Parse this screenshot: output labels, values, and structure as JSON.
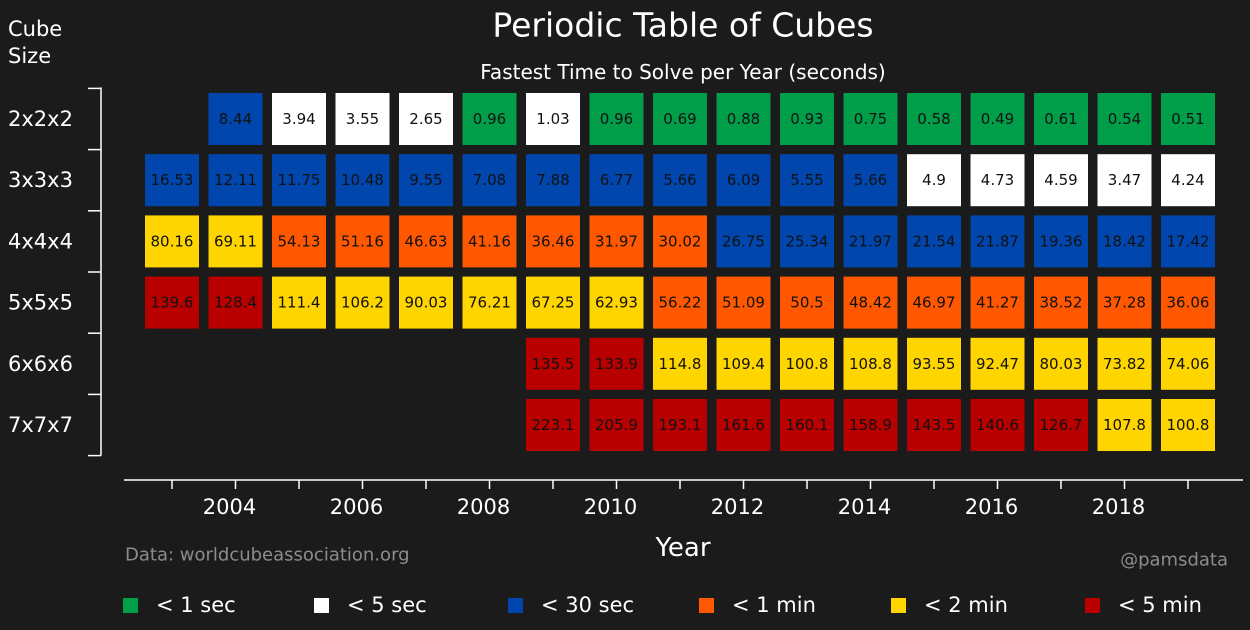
{
  "chart_data": {
    "type": "heatmap",
    "title": "Periodic Table of Cubes",
    "subtitle": "Fastest Time to Solve per Year (seconds)",
    "ylabel": "Cube\nSize",
    "xlabel": "Year",
    "x_ticks": [
      2004,
      2006,
      2008,
      2010,
      2012,
      2014,
      2016,
      2018
    ],
    "years": [
      2003,
      2004,
      2005,
      2006,
      2007,
      2008,
      2009,
      2010,
      2011,
      2012,
      2013,
      2014,
      2015,
      2016,
      2017,
      2018,
      2019
    ],
    "rows": [
      {
        "name": "2x2x2",
        "values": [
          null,
          "8.44",
          "3.94",
          "3.55",
          "2.65",
          "0.96",
          "1.03",
          "0.96",
          "0.69",
          "0.88",
          "0.93",
          "0.75",
          "0.58",
          "0.49",
          "0.61",
          "0.54",
          "0.51"
        ]
      },
      {
        "name": "3x3x3",
        "values": [
          "16.53",
          "12.11",
          "11.75",
          "10.48",
          "9.55",
          "7.08",
          "7.88",
          "6.77",
          "5.66",
          "6.09",
          "5.55",
          "5.66",
          "4.9",
          "4.73",
          "4.59",
          "3.47",
          "4.24"
        ]
      },
      {
        "name": "4x4x4",
        "values": [
          "80.16",
          "69.11",
          "54.13",
          "51.16",
          "46.63",
          "41.16",
          "36.46",
          "31.97",
          "30.02",
          "26.75",
          "25.34",
          "21.97",
          "21.54",
          "21.87",
          "19.36",
          "18.42",
          "17.42"
        ]
      },
      {
        "name": "5x5x5",
        "values": [
          "139.6",
          "128.4",
          "111.4",
          "106.2",
          "90.03",
          "76.21",
          "67.25",
          "62.93",
          "56.22",
          "51.09",
          "50.5",
          "48.42",
          "46.97",
          "41.27",
          "38.52",
          "37.28",
          "36.06"
        ]
      },
      {
        "name": "6x6x6",
        "values": [
          null,
          null,
          null,
          null,
          null,
          null,
          "135.5",
          "133.9",
          "114.8",
          "109.4",
          "100.8",
          "108.8",
          "93.55",
          "92.47",
          "80.03",
          "73.82",
          "74.06"
        ]
      },
      {
        "name": "7x7x7",
        "values": [
          null,
          null,
          null,
          null,
          null,
          null,
          "223.1",
          "205.9",
          "193.1",
          "161.6",
          "160.1",
          "158.9",
          "143.5",
          "140.6",
          "126.7",
          "107.8",
          "100.8"
        ]
      }
    ],
    "legend": [
      {
        "label": "< 1 sec",
        "max": 1,
        "color": "#009e49"
      },
      {
        "label": "< 5 sec",
        "max": 5,
        "color": "#ffffff"
      },
      {
        "label": "< 30 sec",
        "max": 30,
        "color": "#0046ad"
      },
      {
        "label": "< 1 min",
        "max": 60,
        "color": "#ff5800"
      },
      {
        "label": "< 2 min",
        "max": 120,
        "color": "#ffd500"
      },
      {
        "label": "< 5 min",
        "max": 300,
        "color": "#b90000"
      }
    ],
    "legend_placement": "bottom",
    "grid": false
  },
  "footer": {
    "source": "Data: worldcubeassociation.org",
    "credit": "@pamsdata"
  },
  "colors": {
    "background": "#1b1b1b",
    "text": "#ffffff",
    "muted": "#8c8c8c",
    "cell_text_dark": "#111111",
    "cell_text_light": "#000000"
  }
}
